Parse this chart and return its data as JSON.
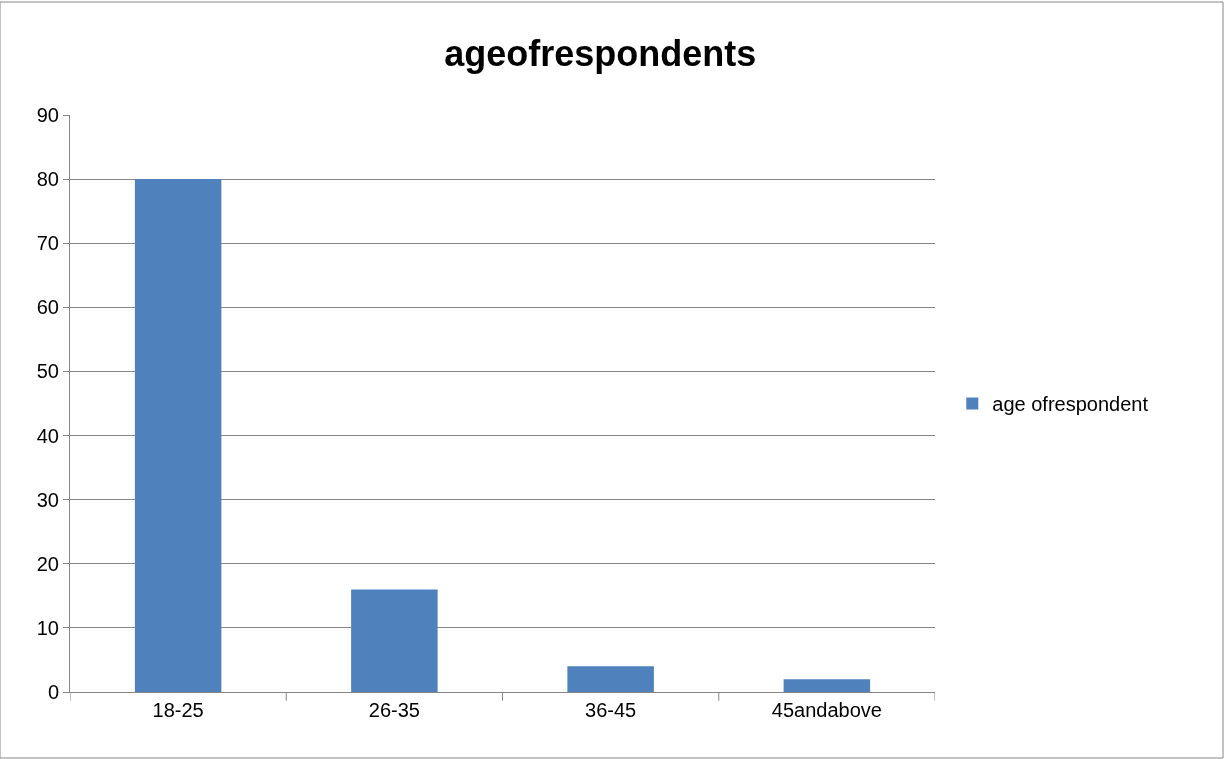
{
  "chart_data": {
    "type": "bar",
    "title": "ageofrespondents",
    "categories": [
      "18-25",
      "26-35",
      "36-45",
      "45andabove"
    ],
    "series": [
      {
        "name": "age ofrespondent",
        "color": "#4f81bd",
        "values": [
          80,
          16,
          4,
          2
        ]
      }
    ],
    "ylim": [
      0,
      90
    ],
    "yticks": [
      0,
      10,
      20,
      30,
      40,
      50,
      60,
      70,
      80,
      90
    ],
    "grid": "y",
    "legend": "right"
  }
}
